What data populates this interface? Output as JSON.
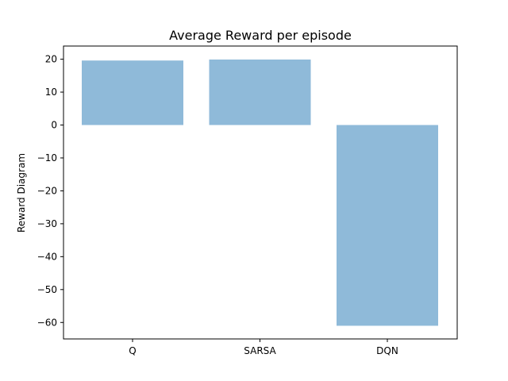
{
  "chart_data": {
    "type": "bar",
    "title": "Average Reward per episode",
    "xlabel": "",
    "ylabel": "Reward Diagram",
    "categories": [
      "Q",
      "SARSA",
      "DQN"
    ],
    "values": [
      19.6,
      19.9,
      -61.0
    ],
    "ylim": [
      -65,
      24
    ],
    "yticks": [
      20,
      10,
      0,
      -10,
      -20,
      -30,
      -40,
      -50,
      -60
    ],
    "ytick_labels": [
      "20",
      "10",
      "0",
      "−10",
      "−20",
      "−30",
      "−40",
      "−50",
      "−60"
    ],
    "grid": false,
    "bar_color": "#8fbad9"
  }
}
